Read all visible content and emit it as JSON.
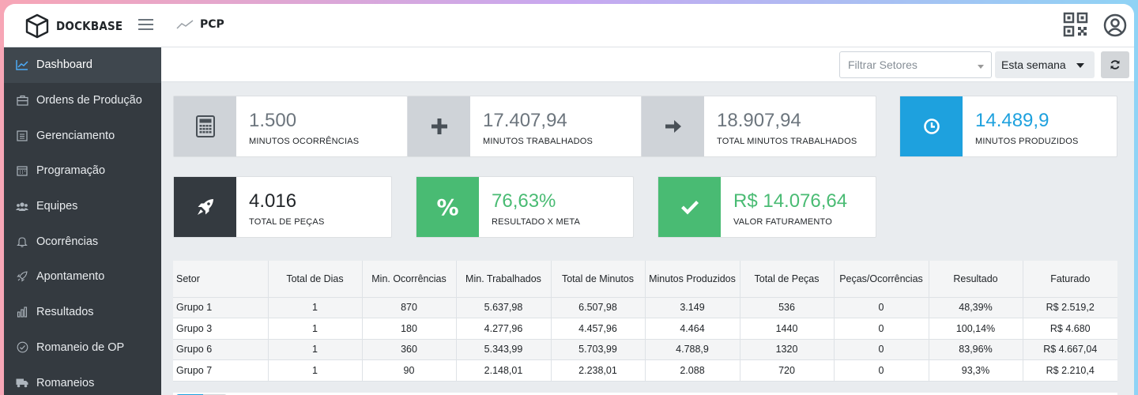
{
  "app": {
    "brand": "DOCKBASE",
    "page": "PCP"
  },
  "sidebar": {
    "items": [
      {
        "label": "Dashboard",
        "icon": "chart-line-icon",
        "active": true
      },
      {
        "label": "Ordens de Produção",
        "icon": "briefcase-icon"
      },
      {
        "label": "Gerenciamento",
        "icon": "list-icon"
      },
      {
        "label": "Programação",
        "icon": "calendar-icon"
      },
      {
        "label": "Equipes",
        "icon": "users-icon"
      },
      {
        "label": "Ocorrências",
        "icon": "bell-icon"
      },
      {
        "label": "Apontamento",
        "icon": "rocket-icon"
      },
      {
        "label": "Resultados",
        "icon": "bar-chart-icon"
      },
      {
        "label": "Romaneio de OP",
        "icon": "check-circle-icon"
      },
      {
        "label": "Romaneios",
        "icon": "truck-icon"
      }
    ]
  },
  "toolbar": {
    "filter_placeholder": "Filtrar Setores",
    "period": "Esta semana"
  },
  "stats": [
    {
      "value": "1.500",
      "label": "MINUTOS OCORRÊNCIAS",
      "icon": "calculator-icon"
    },
    {
      "value": "17.407,94",
      "label": "MINUTOS TRABALHADOS",
      "icon": "plus-icon"
    },
    {
      "value": "18.907,94",
      "label": "TOTAL MINUTOS TRABALHADOS",
      "icon": "arrow-right-icon"
    },
    {
      "value": "14.489,9",
      "label": "MINUTOS PRODUZIDOS",
      "icon": "clock-icon"
    },
    {
      "value": "4.016",
      "label": "TOTAL DE PEÇAS",
      "icon": "rocket-icon"
    },
    {
      "value": "76,63%",
      "label": "RESULTADO X META",
      "icon": "percent-icon"
    },
    {
      "value": "R$ 14.076,64",
      "label": "VALOR FATURAMENTO",
      "icon": "check-icon"
    }
  ],
  "colors": {
    "blue": "#1ea1de",
    "green": "#49bb73",
    "dark": "#343a40",
    "gray": "#cfd3d8"
  },
  "table": {
    "headers": [
      "Setor",
      "Total de Dias",
      "Min. Ocorrências",
      "Min. Trabalhados",
      "Total de Minutos",
      "Minutos Produzidos",
      "Total de Peças",
      "Peças/Ocorrências",
      "Resultado",
      "Faturado"
    ],
    "rows": [
      [
        "Grupo 1",
        "1",
        "870",
        "5.637,98",
        "6.507,98",
        "3.149",
        "536",
        "0",
        "48,39%",
        "R$ 2.519,2"
      ],
      [
        "Grupo 3",
        "1",
        "180",
        "4.277,96",
        "4.457,96",
        "4.464",
        "1440",
        "0",
        "100,14%",
        "R$ 4.680"
      ],
      [
        "Grupo 6",
        "1",
        "360",
        "5.343,99",
        "5.703,99",
        "4.788,9",
        "1320",
        "0",
        "83,96%",
        "R$ 4.667,04"
      ],
      [
        "Grupo 7",
        "1",
        "90",
        "2.148,01",
        "2.238,01",
        "2.088",
        "720",
        "0",
        "93,3%",
        "R$ 2.210,4"
      ]
    ]
  }
}
